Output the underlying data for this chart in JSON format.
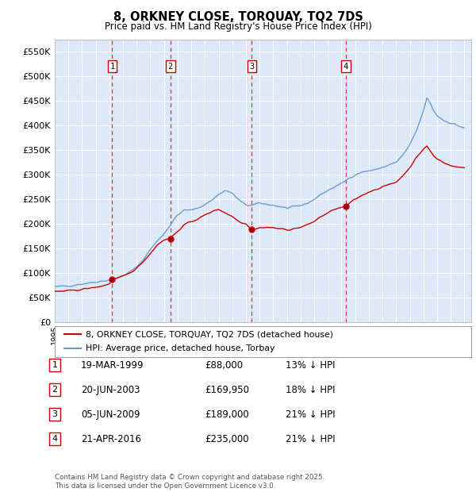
{
  "title": "8, ORKNEY CLOSE, TORQUAY, TQ2 7DS",
  "subtitle": "Price paid vs. HM Land Registry's House Price Index (HPI)",
  "ylabel_ticks": [
    "£0",
    "£50K",
    "£100K",
    "£150K",
    "£200K",
    "£250K",
    "£300K",
    "£350K",
    "£400K",
    "£450K",
    "£500K",
    "£550K"
  ],
  "ylim": [
    0,
    575000
  ],
  "yticks": [
    0,
    50000,
    100000,
    150000,
    200000,
    250000,
    300000,
    350000,
    400000,
    450000,
    500000,
    550000
  ],
  "xlim_start": 1995.0,
  "xlim_end": 2025.5,
  "transactions": [
    {
      "date": "19-MAR-1999",
      "year_float": 1999.21,
      "price": 88000,
      "label": "1",
      "hpi_pct": "13% ↓ HPI"
    },
    {
      "date": "20-JUN-2003",
      "year_float": 2003.47,
      "price": 169950,
      "label": "2",
      "hpi_pct": "18% ↓ HPI"
    },
    {
      "date": "05-JUN-2009",
      "year_float": 2009.43,
      "price": 189000,
      "label": "3",
      "hpi_pct": "21% ↓ HPI"
    },
    {
      "date": "21-APR-2016",
      "year_float": 2016.31,
      "price": 235000,
      "label": "4",
      "hpi_pct": "21% ↓ HPI"
    }
  ],
  "legend_line1": "8, ORKNEY CLOSE, TORQUAY, TQ2 7DS (detached house)",
  "legend_line2": "HPI: Average price, detached house, Torbay",
  "footer": "Contains HM Land Registry data © Crown copyright and database right 2025.\nThis data is licensed under the Open Government Licence v3.0.",
  "background_color": "#ffffff",
  "plot_bg_color": "#dde8f8",
  "grid_color": "#ffffff",
  "red_color": "#cc0000",
  "blue_color": "#6699cc",
  "hpi_keypoints": [
    [
      1995.0,
      72000
    ],
    [
      1995.5,
      73000
    ],
    [
      1996.0,
      74000
    ],
    [
      1996.5,
      76000
    ],
    [
      1997.0,
      78000
    ],
    [
      1997.5,
      80000
    ],
    [
      1998.0,
      82000
    ],
    [
      1998.5,
      84000
    ],
    [
      1999.0,
      86000
    ],
    [
      1999.5,
      89000
    ],
    [
      2000.0,
      95000
    ],
    [
      2000.5,
      102000
    ],
    [
      2001.0,
      112000
    ],
    [
      2001.5,
      128000
    ],
    [
      2002.0,
      148000
    ],
    [
      2002.5,
      165000
    ],
    [
      2003.0,
      180000
    ],
    [
      2003.5,
      200000
    ],
    [
      2004.0,
      218000
    ],
    [
      2004.5,
      228000
    ],
    [
      2005.0,
      228000
    ],
    [
      2005.5,
      232000
    ],
    [
      2006.0,
      240000
    ],
    [
      2006.5,
      248000
    ],
    [
      2007.0,
      260000
    ],
    [
      2007.5,
      268000
    ],
    [
      2008.0,
      262000
    ],
    [
      2008.5,
      248000
    ],
    [
      2009.0,
      238000
    ],
    [
      2009.5,
      238000
    ],
    [
      2010.0,
      242000
    ],
    [
      2010.5,
      240000
    ],
    [
      2011.0,
      238000
    ],
    [
      2011.5,
      235000
    ],
    [
      2012.0,
      232000
    ],
    [
      2012.5,
      234000
    ],
    [
      2013.0,
      237000
    ],
    [
      2013.5,
      242000
    ],
    [
      2014.0,
      250000
    ],
    [
      2014.5,
      260000
    ],
    [
      2015.0,
      268000
    ],
    [
      2015.5,
      275000
    ],
    [
      2016.0,
      282000
    ],
    [
      2016.5,
      292000
    ],
    [
      2017.0,
      300000
    ],
    [
      2017.5,
      305000
    ],
    [
      2018.0,
      308000
    ],
    [
      2018.5,
      310000
    ],
    [
      2019.0,
      315000
    ],
    [
      2019.5,
      320000
    ],
    [
      2020.0,
      325000
    ],
    [
      2020.5,
      340000
    ],
    [
      2021.0,
      360000
    ],
    [
      2021.5,
      390000
    ],
    [
      2022.0,
      430000
    ],
    [
      2022.25,
      455000
    ],
    [
      2022.5,
      445000
    ],
    [
      2022.75,
      430000
    ],
    [
      2023.0,
      420000
    ],
    [
      2023.5,
      410000
    ],
    [
      2024.0,
      405000
    ],
    [
      2024.5,
      400000
    ],
    [
      2025.0,
      395000
    ]
  ],
  "red_keypoints": [
    [
      1995.0,
      62000
    ],
    [
      1995.5,
      63000
    ],
    [
      1996.0,
      64000
    ],
    [
      1996.5,
      65000
    ],
    [
      1997.0,
      67000
    ],
    [
      1997.5,
      69000
    ],
    [
      1998.0,
      71000
    ],
    [
      1998.5,
      74000
    ],
    [
      1999.0,
      78000
    ],
    [
      1999.21,
      88000
    ],
    [
      1999.5,
      88500
    ],
    [
      2000.0,
      93000
    ],
    [
      2000.5,
      100000
    ],
    [
      2001.0,
      110000
    ],
    [
      2001.5,
      124000
    ],
    [
      2002.0,
      140000
    ],
    [
      2002.5,
      157000
    ],
    [
      2003.0,
      168000
    ],
    [
      2003.47,
      169950
    ],
    [
      2003.5,
      172000
    ],
    [
      2004.0,
      185000
    ],
    [
      2004.5,
      198000
    ],
    [
      2005.0,
      205000
    ],
    [
      2005.5,
      210000
    ],
    [
      2006.0,
      218000
    ],
    [
      2006.5,
      225000
    ],
    [
      2007.0,
      230000
    ],
    [
      2007.5,
      222000
    ],
    [
      2008.0,
      215000
    ],
    [
      2008.5,
      205000
    ],
    [
      2009.0,
      200000
    ],
    [
      2009.43,
      189000
    ],
    [
      2009.5,
      188000
    ],
    [
      2010.0,
      192000
    ],
    [
      2010.5,
      193000
    ],
    [
      2011.0,
      192000
    ],
    [
      2011.5,
      190000
    ],
    [
      2012.0,
      188000
    ],
    [
      2012.5,
      190000
    ],
    [
      2013.0,
      193000
    ],
    [
      2013.5,
      198000
    ],
    [
      2014.0,
      205000
    ],
    [
      2014.5,
      215000
    ],
    [
      2015.0,
      222000
    ],
    [
      2015.5,
      230000
    ],
    [
      2016.0,
      233000
    ],
    [
      2016.31,
      235000
    ],
    [
      2016.5,
      240000
    ],
    [
      2017.0,
      250000
    ],
    [
      2017.5,
      258000
    ],
    [
      2018.0,
      265000
    ],
    [
      2018.5,
      270000
    ],
    [
      2019.0,
      275000
    ],
    [
      2019.5,
      280000
    ],
    [
      2020.0,
      285000
    ],
    [
      2020.5,
      298000
    ],
    [
      2021.0,
      315000
    ],
    [
      2021.5,
      335000
    ],
    [
      2022.0,
      352000
    ],
    [
      2022.25,
      358000
    ],
    [
      2022.5,
      348000
    ],
    [
      2022.75,
      338000
    ],
    [
      2023.0,
      332000
    ],
    [
      2023.5,
      325000
    ],
    [
      2024.0,
      318000
    ],
    [
      2024.5,
      315000
    ],
    [
      2025.0,
      315000
    ]
  ]
}
